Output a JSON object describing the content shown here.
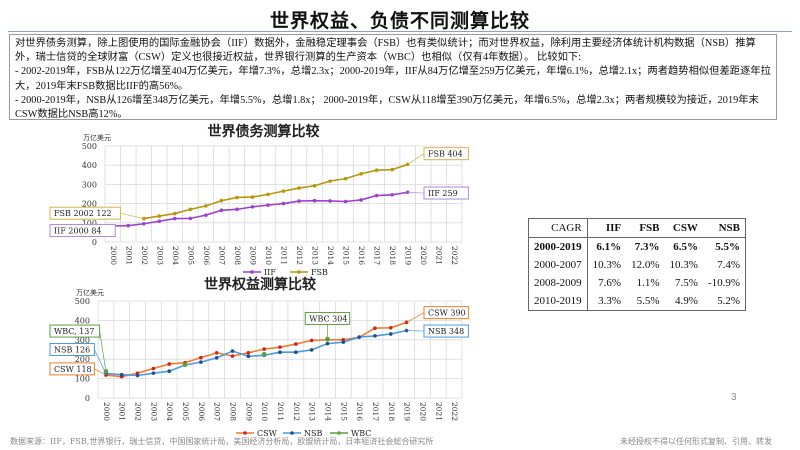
{
  "title": "世界权益、负债不同测算比较",
  "textbox": {
    "lines": [
      "对世界债务测算，除上图使用的国际金融协会（IIF）数据外，金融稳定理事会（FSB）也有类似统计；而对世界权益，除利用主要经济体统计机构数据（NSB）推算外，瑞士信贷的全球财富（CSW）定义也很接近权益，世界银行测算的生产资本（WBC）也相似（仅有4年数据）。 比较如下:",
      "- 2002-2019年，FSB从122万亿增至404万亿美元，年增7.3%，总增2.3x；2000-2019年，IIF从84万亿增至259万亿美元，年增6.1%，总增2.1x；两者趋势相似但差距逐年拉大，2019年末FSB数据比IIF的高56%。",
      "- 2000-2019年，NSB从126增至348万亿美元，年增5.5%，总增1.8x； 2000-2019年，CSW从118增至390万亿美元，年增6.5%，总增2.3x；两者规模较为接近，2019年末CSW数据比NSB高12%。"
    ]
  },
  "chart_data": [
    {
      "type": "line",
      "title": "世界债务测算比较",
      "ylabel": "万亿美元",
      "ylim": [
        0,
        500
      ],
      "yticks": [
        "0",
        "100",
        "200",
        "300",
        "400",
        "500"
      ],
      "grid": true,
      "legend_placement": "bottom",
      "x": [
        "2000",
        "2001",
        "2002",
        "2003",
        "2004",
        "2005",
        "2006",
        "2007",
        "2008",
        "2009",
        "2010",
        "2011",
        "2012",
        "2013",
        "2014",
        "2015",
        "2016",
        "2017",
        "2018",
        "2019",
        "2020",
        "2021",
        "2022"
      ],
      "series": [
        {
          "name": "IIF",
          "color": "#9b40d0",
          "values": [
            84,
            85,
            95,
            108,
            122,
            123,
            140,
            165,
            170,
            183,
            192,
            200,
            213,
            215,
            214,
            211,
            219,
            242,
            246,
            259,
            null,
            null,
            null
          ]
        },
        {
          "name": "FSB",
          "color": "#b8960c",
          "values": [
            null,
            null,
            122,
            135,
            148,
            170,
            188,
            215,
            232,
            234,
            248,
            265,
            281,
            293,
            317,
            330,
            355,
            374,
            377,
            404,
            null,
            null,
            null
          ]
        }
      ],
      "annotations": [
        {
          "text": "FSB 2002 122",
          "series": "FSB",
          "x": "2002",
          "side": "left",
          "box_y": 150,
          "color": "#d4b44a"
        },
        {
          "text": "IIF 2000 84",
          "series": "IIF",
          "x": "2000",
          "side": "left",
          "box_y": 60,
          "color": "#b48ad8"
        },
        {
          "text": "FSB 404",
          "series": "FSB",
          "x": "2019",
          "side": "right",
          "box_y": 460,
          "color": "#d4b44a"
        },
        {
          "text": "IIF 259",
          "series": "IIF",
          "x": "2019",
          "side": "right",
          "box_y": 255,
          "color": "#b48ad8"
        }
      ]
    },
    {
      "type": "line",
      "title": "世界权益测算比较",
      "ylabel": "万亿美元",
      "ylim": [
        0,
        500
      ],
      "yticks": [
        "0",
        "100",
        "200",
        "300",
        "400",
        "500"
      ],
      "grid": true,
      "legend_placement": "bottom",
      "x": [
        "2000",
        "2001",
        "2002",
        "2003",
        "2004",
        "2005",
        "2006",
        "2007",
        "2008",
        "2009",
        "2010",
        "2011",
        "2012",
        "2013",
        "2014",
        "2015",
        "2016",
        "2017",
        "2018",
        "2019",
        "2020",
        "2021",
        "2022"
      ],
      "series": [
        {
          "name": "CSW",
          "color": "#f07d2a",
          "marker": "#d42020",
          "values": [
            118,
            110,
            128,
            152,
            175,
            182,
            208,
            233,
            216,
            233,
            252,
            262,
            278,
            297,
            300,
            300,
            313,
            360,
            362,
            390,
            null,
            null,
            null
          ]
        },
        {
          "name": "NSB",
          "color": "#4a9be0",
          "marker": "#1f4f8a",
          "values": [
            126,
            120,
            116,
            128,
            138,
            170,
            185,
            207,
            242,
            215,
            220,
            236,
            236,
            248,
            280,
            288,
            314,
            320,
            330,
            348,
            null,
            null,
            null
          ]
        },
        {
          "name": "WBC",
          "color": "#5aa040",
          "marker": "#5aa040",
          "values": [
            137,
            null,
            null,
            null,
            null,
            172,
            null,
            null,
            null,
            null,
            225,
            null,
            null,
            null,
            304,
            null,
            null,
            null,
            null,
            null,
            null,
            null,
            null
          ]
        }
      ],
      "annotations": [
        {
          "text": "WBC, 137",
          "series": "WBC",
          "x": "2000",
          "side": "left",
          "box_y": 345,
          "color": "#5aa040"
        },
        {
          "text": "NSB 126",
          "series": "NSB",
          "x": "2000",
          "side": "left",
          "box_y": 250,
          "color": "#4a9be0"
        },
        {
          "text": "CSW 118",
          "series": "CSW",
          "x": "2000",
          "side": "left",
          "box_y": 150,
          "color": "#f07d2a"
        },
        {
          "text": "WBC 304",
          "series": "WBC",
          "x": "2014",
          "side": "above",
          "box_y": 410,
          "color": "#5aa040"
        },
        {
          "text": "CSW 390",
          "series": "CSW",
          "x": "2019",
          "side": "right",
          "box_y": 440,
          "color": "#f07d2a"
        },
        {
          "text": "NSB 348",
          "series": "NSB",
          "x": "2019",
          "side": "right",
          "box_y": 345,
          "color": "#4a9be0"
        }
      ]
    }
  ],
  "cagr_table": {
    "headers": [
      "CAGR",
      "IIF",
      "FSB",
      "CSW",
      "NSB"
    ],
    "rows": [
      [
        "2000-2019",
        "6.1%",
        "7.3%",
        "6.5%",
        "5.5%"
      ],
      [
        "2000-2007",
        "10.3%",
        "12.0%",
        "10.3%",
        "7.4%"
      ],
      [
        "2008-2009",
        "7.6%",
        "1.1%",
        "7.5%",
        "-10.9%"
      ],
      [
        "2010-2019",
        "3.3%",
        "5.5%",
        "4.9%",
        "5.2%"
      ]
    ]
  },
  "page_number": "3",
  "source": "数据来源：IIF，FSB,世界银行，瑞士信贷，中国国家统计局，美国经济分析局，欧盟统计局，日本經済社会総合研究所",
  "copyright": "未经授权不得以任何形式复制、引用、转发"
}
